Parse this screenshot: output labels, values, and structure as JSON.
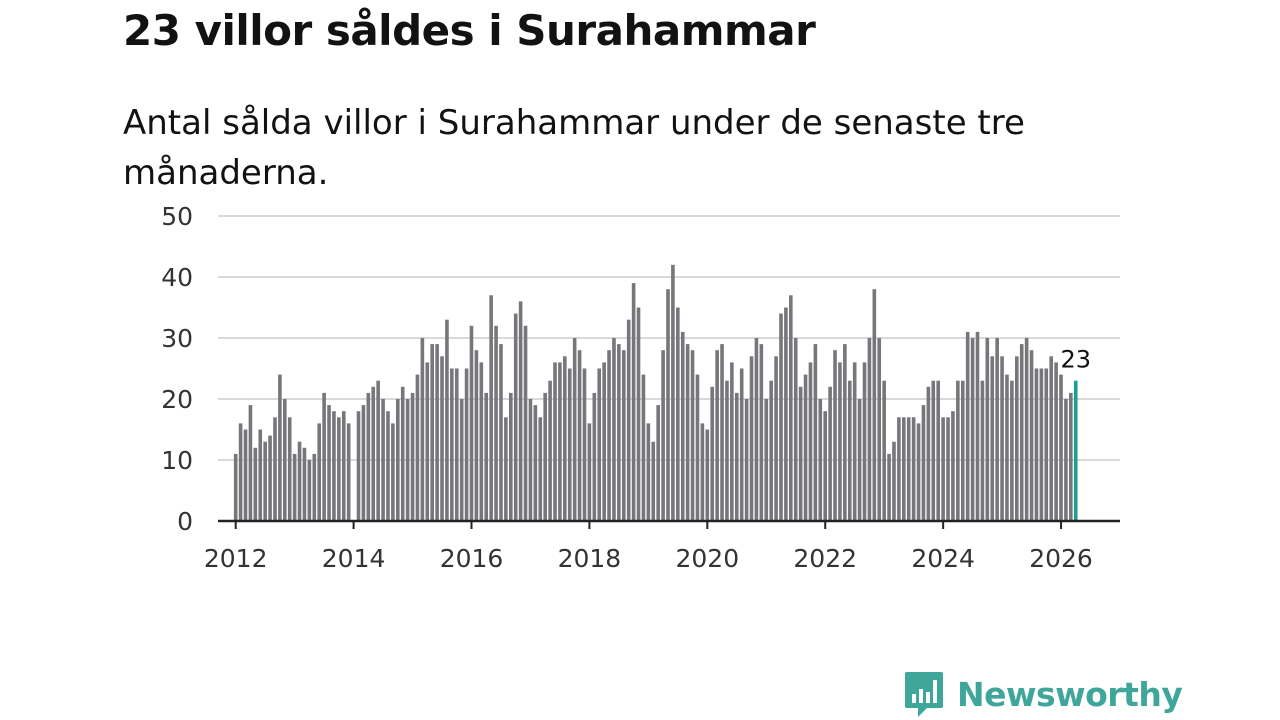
{
  "title": "23 villor såldes i Surahammar",
  "subtitle": "Antal sålda villor i Surahammar under de senaste tre månaderna.",
  "brand": {
    "name": "Newsworthy",
    "icon": "newsworthy-logo-icon"
  },
  "colors": {
    "bar": "#76767b",
    "highlight": "#1a9e95",
    "grid": "#d9d9d9",
    "axis": "#222222",
    "brand": "#3fa69c"
  },
  "chart_data": {
    "type": "bar",
    "title": "23 villor såldes i Surahammar",
    "subtitle": "Antal sålda villor i Surahammar under de senaste tre månaderna.",
    "xlabel": "",
    "ylabel": "",
    "ylim": [
      0,
      50
    ],
    "yticks": [
      0,
      10,
      20,
      30,
      40,
      50
    ],
    "xlim": [
      2011.7,
      2027.0
    ],
    "xticks": [
      2012,
      2014,
      2016,
      2018,
      2020,
      2022,
      2024,
      2026
    ],
    "x_start": 2012.0,
    "step": 0.08333,
    "highlight_label": "23",
    "grid": true,
    "values": [
      11,
      16,
      15,
      19,
      12,
      15,
      13,
      14,
      17,
      24,
      20,
      17,
      11,
      13,
      12,
      10,
      11,
      16,
      21,
      19,
      18,
      17,
      18,
      16,
      0,
      18,
      19,
      21,
      22,
      23,
      20,
      18,
      16,
      20,
      22,
      20,
      21,
      24,
      30,
      26,
      29,
      29,
      27,
      33,
      25,
      25,
      20,
      25,
      32,
      28,
      26,
      21,
      37,
      32,
      29,
      17,
      21,
      34,
      36,
      32,
      20,
      19,
      17,
      21,
      23,
      26,
      26,
      27,
      25,
      30,
      28,
      25,
      16,
      21,
      25,
      26,
      28,
      30,
      29,
      28,
      33,
      39,
      35,
      24,
      16,
      13,
      19,
      28,
      38,
      42,
      35,
      31,
      29,
      28,
      24,
      16,
      15,
      22,
      28,
      29,
      23,
      26,
      21,
      25,
      20,
      27,
      30,
      29,
      20,
      23,
      27,
      34,
      35,
      37,
      30,
      22,
      24,
      26,
      29,
      20,
      18,
      22,
      28,
      26,
      29,
      23,
      26,
      20,
      26,
      30,
      38,
      30,
      23,
      11,
      13,
      17,
      17,
      17,
      17,
      16,
      19,
      22,
      23,
      23,
      17,
      17,
      18,
      23,
      23,
      31,
      30,
      31,
      23,
      30,
      27,
      30,
      27,
      24,
      23,
      27,
      29,
      30,
      28,
      25,
      25,
      25,
      27,
      26,
      24,
      20,
      21,
      23
    ]
  }
}
